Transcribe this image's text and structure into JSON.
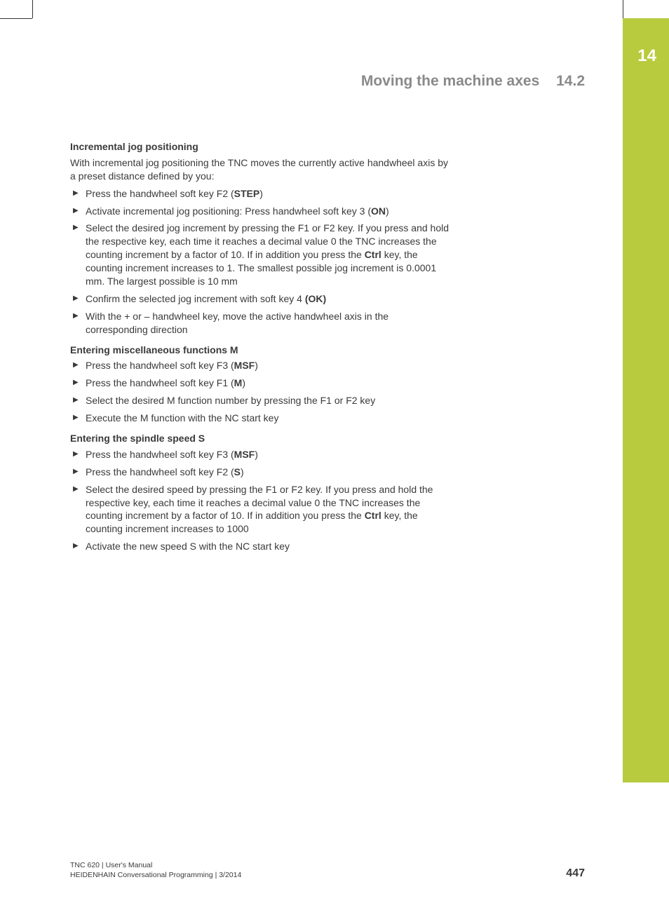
{
  "chapter": {
    "number": "14"
  },
  "section": {
    "title": "Moving the machine axes",
    "number": "14.2"
  },
  "colors": {
    "accent": "#b8cb3e",
    "text": "#3a3a3a",
    "header_gray": "#8a8a8a",
    "white": "#ffffff"
  },
  "blocks": [
    {
      "heading": "Incremental jog positioning",
      "intro": "With incremental jog positioning the TNC moves the currently active handwheel axis by a preset distance defined by you:",
      "steps": [
        [
          {
            "t": "Press the handwheel soft key F2 ("
          },
          {
            "t": "STEP",
            "b": true
          },
          {
            "t": ")"
          }
        ],
        [
          {
            "t": "Activate incremental jog positioning: Press handwheel soft key 3 ("
          },
          {
            "t": "ON",
            "b": true
          },
          {
            "t": ")"
          }
        ],
        [
          {
            "t": "Select the desired jog increment by pressing the F1 or F2 key. If you press and hold the respective key, each time it reaches a decimal value 0 the TNC increases the counting increment by a factor of 10. If in addition you press the "
          },
          {
            "t": "Ctrl",
            "b": true
          },
          {
            "t": " key, the counting increment increases to 1. The smallest possible jog increment is 0.0001 mm. The largest possible is 10 mm"
          }
        ],
        [
          {
            "t": "Confirm the selected jog increment with soft key 4 "
          },
          {
            "t": "(OK)",
            "b": true
          }
        ],
        [
          {
            "t": "With the + or – handwheel key, move the active handwheel axis in the corresponding direction"
          }
        ]
      ]
    },
    {
      "heading": "Entering miscellaneous functions M",
      "steps": [
        [
          {
            "t": "Press the handwheel soft key F3 ("
          },
          {
            "t": "MSF",
            "b": true
          },
          {
            "t": ")"
          }
        ],
        [
          {
            "t": "Press the handwheel soft key F1 ("
          },
          {
            "t": "M",
            "b": true
          },
          {
            "t": ")"
          }
        ],
        [
          {
            "t": "Select the desired M function number by pressing the F1 or F2 key"
          }
        ],
        [
          {
            "t": "Execute the M function with the NC start key"
          }
        ]
      ]
    },
    {
      "heading": "Entering the spindle speed S",
      "steps": [
        [
          {
            "t": "Press the handwheel soft key F3 ("
          },
          {
            "t": "MSF",
            "b": true
          },
          {
            "t": ")"
          }
        ],
        [
          {
            "t": "Press the handwheel soft key F2 ("
          },
          {
            "t": "S",
            "b": true
          },
          {
            "t": ")"
          }
        ],
        [
          {
            "t": "Select the desired speed by pressing the F1 or F2 key. If you press and hold the respective key, each time it reaches a decimal value 0 the TNC increases the counting increment by a factor of 10. If in addition you press the "
          },
          {
            "t": "Ctrl",
            "b": true
          },
          {
            "t": " key, the counting increment increases to 1000"
          }
        ],
        [
          {
            "t": "Activate the new speed S with the NC start key"
          }
        ]
      ]
    }
  ],
  "footer": {
    "line1": "TNC 620 | User's Manual",
    "line2": "HEIDENHAIN Conversational Programming | 3/2014"
  },
  "page_number": "447"
}
